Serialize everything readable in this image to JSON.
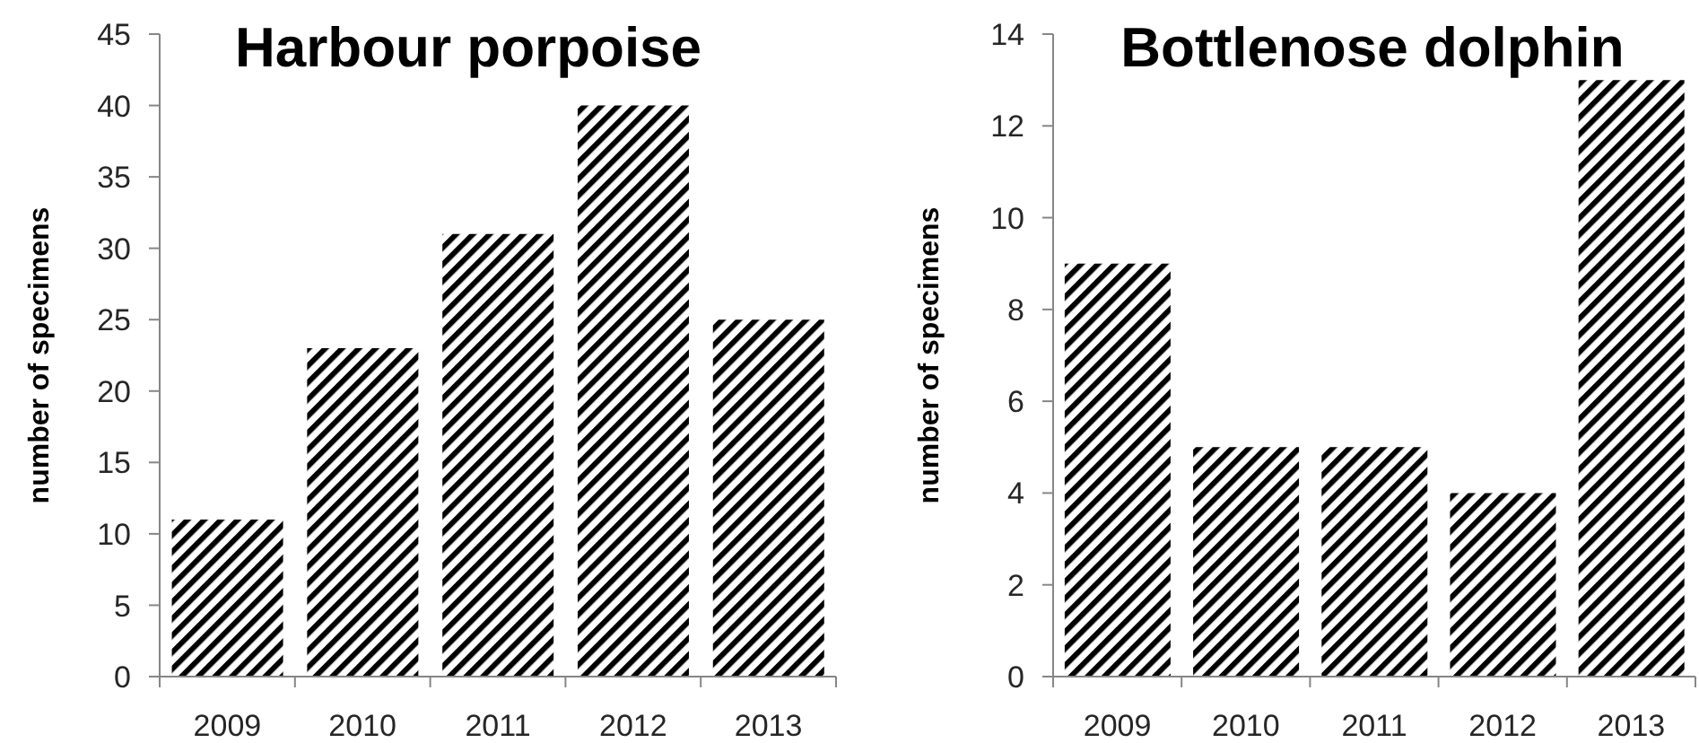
{
  "chart_data": [
    {
      "type": "bar",
      "title": "Harbour porpoise",
      "ylabel": "number of specimens",
      "categories": [
        "2009",
        "2010",
        "2011",
        "2012",
        "2013"
      ],
      "values": [
        11,
        23,
        31,
        40,
        25
      ],
      "color": "#000000",
      "ylim": [
        0,
        45
      ],
      "yticks": [
        0,
        5,
        10,
        15,
        20,
        25,
        30,
        35,
        40,
        45
      ]
    },
    {
      "type": "bar",
      "title": "Bottlenose dolphin",
      "ylabel": "number of specimens",
      "categories": [
        "2009",
        "2010",
        "2011",
        "2012",
        "2013"
      ],
      "values": [
        9,
        5,
        5,
        4,
        13
      ],
      "color": "#000000",
      "ylim": [
        0,
        14
      ],
      "yticks": [
        0,
        2,
        4,
        6,
        8,
        10,
        12,
        14
      ]
    }
  ]
}
